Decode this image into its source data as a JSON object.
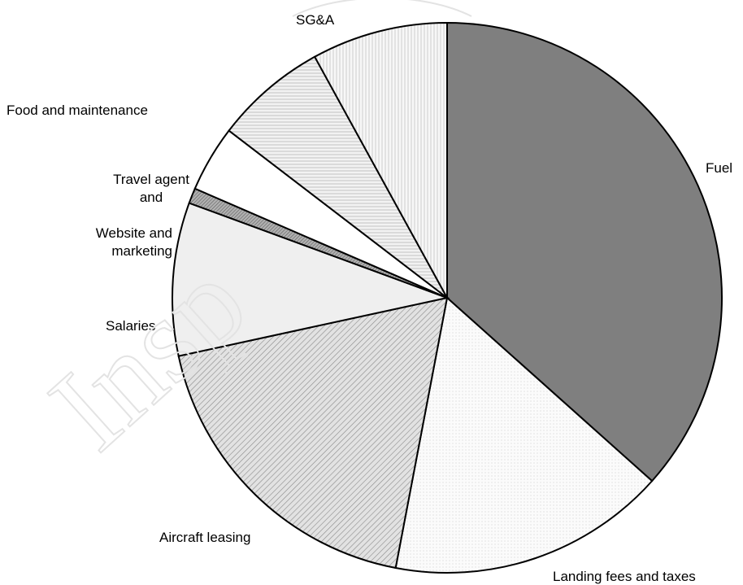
{
  "chart_data": {
    "type": "pie",
    "labels": [
      "Fuel",
      "Landing fees and taxes",
      "Aircraft leasing",
      "Salaries",
      "Website and marketing",
      "Travel agent and",
      "Food and maintenance",
      "SG&A"
    ],
    "values": [
      36.6,
      16.4,
      18.6,
      9.0,
      0.9,
      3.9,
      6.6,
      8.0
    ],
    "colors": [
      "#7f7f7f",
      "#f4f4f4",
      "#c9c9c9",
      "#ececec",
      "#9a9a9a",
      "#ffffff",
      "#dedede",
      "#f1f1f1"
    ],
    "legend": "none",
    "title": ""
  }
}
